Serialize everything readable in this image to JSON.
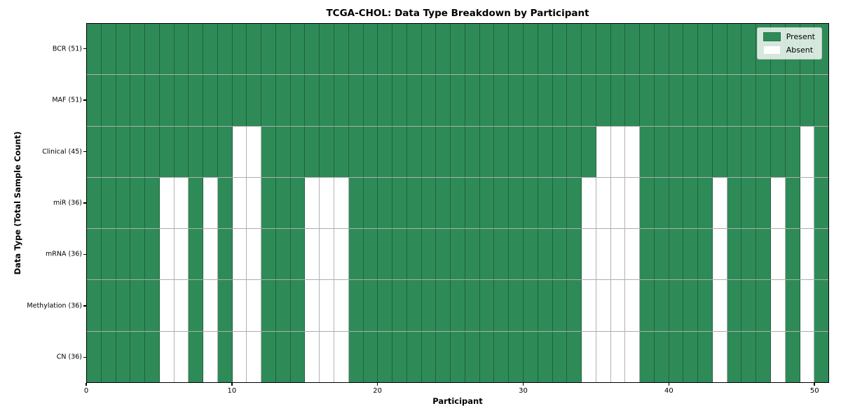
{
  "chart_data": {
    "type": "heatmap",
    "title": "TCGA-CHOL: Data Type Breakdown by Participant",
    "xlabel": "Participant",
    "ylabel": "Data Type (Total Sample Count)",
    "n_participants": 51,
    "x_range": [
      0,
      51
    ],
    "x_ticks": [
      "0",
      "10",
      "20",
      "30",
      "40",
      "50"
    ],
    "grid": true,
    "colors": {
      "present": "#2e8b57",
      "absent": "#ffffff",
      "cell_border": "rgba(0,0,0,0.30)",
      "frame": "#000000"
    },
    "legend": {
      "position": "upper right",
      "entries": [
        {
          "label": "Present",
          "color": "#2e8b57"
        },
        {
          "label": "Absent",
          "color": "#ffffff"
        }
      ]
    },
    "rows": [
      {
        "label": "BCR (51)",
        "data_type": "BCR",
        "total": 51,
        "absent_participants": []
      },
      {
        "label": "MAF (51)",
        "data_type": "MAF",
        "total": 51,
        "absent_participants": []
      },
      {
        "label": "Clinical (45)",
        "data_type": "Clinical",
        "total": 45,
        "absent_participants": [
          10,
          11,
          35,
          36,
          37,
          49
        ]
      },
      {
        "label": "miR (36)",
        "data_type": "miR",
        "total": 36,
        "absent_participants": [
          5,
          6,
          8,
          10,
          11,
          15,
          16,
          17,
          34,
          35,
          36,
          37,
          43,
          47,
          49
        ]
      },
      {
        "label": "mRNA (36)",
        "data_type": "mRNA",
        "total": 36,
        "absent_participants": [
          5,
          6,
          8,
          10,
          11,
          15,
          16,
          17,
          34,
          35,
          36,
          37,
          43,
          47,
          49
        ]
      },
      {
        "label": "Methylation (36)",
        "data_type": "Methylation",
        "total": 36,
        "absent_participants": [
          5,
          6,
          8,
          10,
          11,
          15,
          16,
          17,
          34,
          35,
          36,
          37,
          43,
          47,
          49
        ]
      },
      {
        "label": "CN (36)",
        "data_type": "CN",
        "total": 36,
        "absent_participants": [
          5,
          6,
          8,
          10,
          11,
          15,
          16,
          17,
          34,
          35,
          36,
          37,
          43,
          47,
          49
        ]
      }
    ]
  }
}
